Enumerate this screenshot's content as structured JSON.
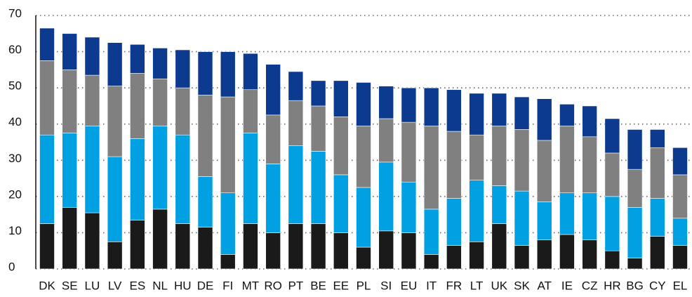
{
  "chart_data": {
    "type": "stacked_bar",
    "categories": [
      "DK",
      "SE",
      "LU",
      "LV",
      "ES",
      "NL",
      "HU",
      "DE",
      "FI",
      "MT",
      "RO",
      "PT",
      "BE",
      "EE",
      "PL",
      "SI",
      "EU",
      "IT",
      "FR",
      "LT",
      "UK",
      "SK",
      "AT",
      "IE",
      "CZ",
      "HR",
      "BG",
      "CY",
      "EL"
    ],
    "series": [
      {
        "color": "#1a1a1a",
        "values": [
          12.5,
          17,
          15.5,
          7.5,
          13.5,
          16.5,
          12.5,
          11.5,
          4,
          12.5,
          10,
          12.5,
          12.5,
          10,
          6,
          10.5,
          10,
          4,
          6.5,
          7.5,
          12.5,
          6.5,
          8,
          9.5,
          8,
          5,
          3,
          9,
          6.5
        ]
      },
      {
        "color": "#00a0e3",
        "values": [
          24.5,
          20.5,
          24,
          23.5,
          22.5,
          23,
          24.5,
          14,
          17,
          25,
          19,
          21.5,
          20,
          16,
          16.5,
          19,
          14,
          12.5,
          13,
          17,
          10.5,
          15,
          10.5,
          11.5,
          13,
          15,
          14,
          10.5,
          7.5
        ]
      },
      {
        "color": "#808080",
        "values": [
          20.5,
          17.5,
          14,
          19.5,
          18,
          13,
          13,
          22.5,
          26.5,
          12,
          13.5,
          12.5,
          12.5,
          16,
          17,
          12,
          16.5,
          23,
          18.5,
          12.5,
          16.5,
          17,
          17,
          18.5,
          15.5,
          12,
          10.5,
          14,
          12
        ]
      },
      {
        "color": "#0b3a8f",
        "values": [
          9,
          10,
          10.5,
          12,
          8,
          8.5,
          10.5,
          12,
          12.5,
          10,
          14,
          8,
          7,
          10,
          12,
          9,
          9.5,
          10.5,
          11.5,
          11.5,
          9,
          9,
          11.5,
          6,
          8.5,
          9.5,
          11,
          5,
          7.5
        ]
      }
    ],
    "ylim": [
      0,
      70
    ],
    "yticks": [
      0,
      10,
      20,
      30,
      40,
      50,
      60,
      70
    ],
    "grid": true
  }
}
